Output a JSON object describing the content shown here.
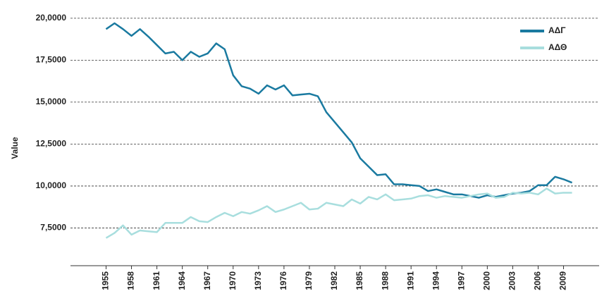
{
  "chart_data": {
    "type": "line",
    "ylabel": "Value",
    "x": [
      1955,
      1956,
      1957,
      1958,
      1959,
      1960,
      1961,
      1962,
      1963,
      1964,
      1965,
      1966,
      1967,
      1968,
      1969,
      1970,
      1971,
      1972,
      1973,
      1974,
      1975,
      1976,
      1977,
      1978,
      1979,
      1980,
      1981,
      1982,
      1983,
      1984,
      1985,
      1986,
      1987,
      1988,
      1989,
      1990,
      1991,
      1992,
      1993,
      1994,
      1995,
      1996,
      1997,
      1998,
      1999,
      2000,
      2001,
      2002,
      2003,
      2004,
      2005,
      2006,
      2007,
      2008,
      2009,
      2010
    ],
    "series": [
      {
        "name": "ΑΔΓ",
        "color": "#1a7aa0",
        "values": [
          19.35,
          19.7,
          19.35,
          18.95,
          19.35,
          18.9,
          18.4,
          17.9,
          18.0,
          17.5,
          18.0,
          17.7,
          17.9,
          18.5,
          18.15,
          16.6,
          15.95,
          15.8,
          15.5,
          16.0,
          15.75,
          16.0,
          15.4,
          15.45,
          15.5,
          15.35,
          14.4,
          13.8,
          13.2,
          12.6,
          11.65,
          11.15,
          10.65,
          10.7,
          10.1,
          10.1,
          10.05,
          10.0,
          9.7,
          9.8,
          9.65,
          9.5,
          9.5,
          9.4,
          9.3,
          9.45,
          9.35,
          9.45,
          9.55,
          9.6,
          9.7,
          10.05,
          10.05,
          10.55,
          10.4,
          10.2
        ]
      },
      {
        "name": "ΑΔΘ",
        "color": "#a8dede",
        "values": [
          6.9,
          7.2,
          7.65,
          7.1,
          7.35,
          7.3,
          7.25,
          7.8,
          7.8,
          7.8,
          8.15,
          7.9,
          7.85,
          8.15,
          8.4,
          8.2,
          8.45,
          8.35,
          8.55,
          8.8,
          8.45,
          8.6,
          8.8,
          9.0,
          8.6,
          8.65,
          9.0,
          8.9,
          8.8,
          9.2,
          8.95,
          9.35,
          9.2,
          9.5,
          9.15,
          9.2,
          9.25,
          9.4,
          9.45,
          9.3,
          9.4,
          9.35,
          9.3,
          9.4,
          9.5,
          9.55,
          9.3,
          9.35,
          9.6,
          9.55,
          9.6,
          9.5,
          9.85,
          9.55,
          9.6,
          9.6
        ]
      }
    ],
    "xlim": [
      1950.8,
      2013.2
    ],
    "xticks": [
      1955,
      1958,
      1961,
      1964,
      1967,
      1970,
      1973,
      1976,
      1979,
      1982,
      1985,
      1988,
      1991,
      1994,
      1997,
      2000,
      2003,
      2006,
      2009
    ],
    "ylim": [
      5.25,
      20.75
    ],
    "yticks": [
      {
        "value": 7.5,
        "label": "7,5000"
      },
      {
        "value": 10,
        "label": "10,0000"
      },
      {
        "value": 12.5,
        "label": "12,5000"
      },
      {
        "value": 15,
        "label": "15,0000"
      },
      {
        "value": 17.5,
        "label": "17,5000"
      },
      {
        "value": 20,
        "label": "20,0000"
      }
    ],
    "grid": true,
    "legend": "upper right"
  }
}
